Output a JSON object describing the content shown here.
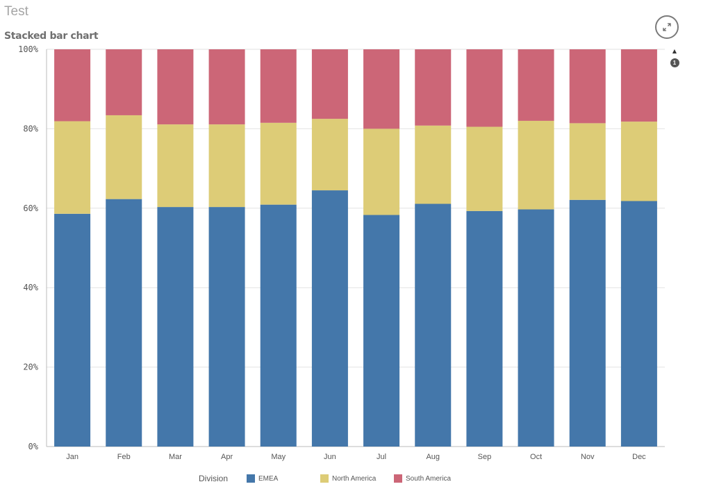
{
  "sheet": {
    "title": "Test"
  },
  "chart_title": "Stacked bar chart",
  "chart_data": {
    "type": "bar",
    "stacked": true,
    "percent": true,
    "title": "Stacked bar chart",
    "xlabel": "",
    "ylabel": "",
    "ylim": [
      0,
      100
    ],
    "yticks": [
      "0%",
      "20%",
      "40%",
      "60%",
      "80%",
      "100%"
    ],
    "categories": [
      "Jan",
      "Feb",
      "Mar",
      "Apr",
      "May",
      "Jun",
      "Jul",
      "Aug",
      "Sep",
      "Oct",
      "Nov",
      "Dec"
    ],
    "series": [
      {
        "name": "EMEA",
        "color": "#4477aa",
        "values": [
          58.6,
          62.3,
          60.3,
          60.3,
          60.9,
          64.5,
          58.3,
          61.1,
          59.3,
          59.7,
          62.1,
          61.8
        ]
      },
      {
        "name": "North America",
        "color": "#ddcc77",
        "values": [
          23.3,
          21.1,
          20.8,
          20.8,
          20.6,
          18.0,
          21.7,
          19.7,
          21.2,
          22.3,
          19.3,
          20.0
        ]
      },
      {
        "name": "South America",
        "color": "#cc6677",
        "values": [
          18.1,
          16.6,
          18.9,
          18.9,
          18.5,
          17.5,
          20.0,
          19.2,
          19.5,
          18.0,
          18.6,
          18.2
        ]
      }
    ],
    "grid": true,
    "legend_position": "bottom"
  },
  "legend": {
    "title": "Division",
    "items": [
      {
        "label": "EMEA",
        "color": "#4477aa"
      },
      {
        "label": "North America",
        "color": "#ddcc77"
      },
      {
        "label": "South America",
        "color": "#cc6677"
      }
    ]
  },
  "scroll": {
    "badge": "1",
    "up_icon": "triangle-up-icon"
  },
  "toolbar": {
    "expand_icon": "expand-icon"
  }
}
